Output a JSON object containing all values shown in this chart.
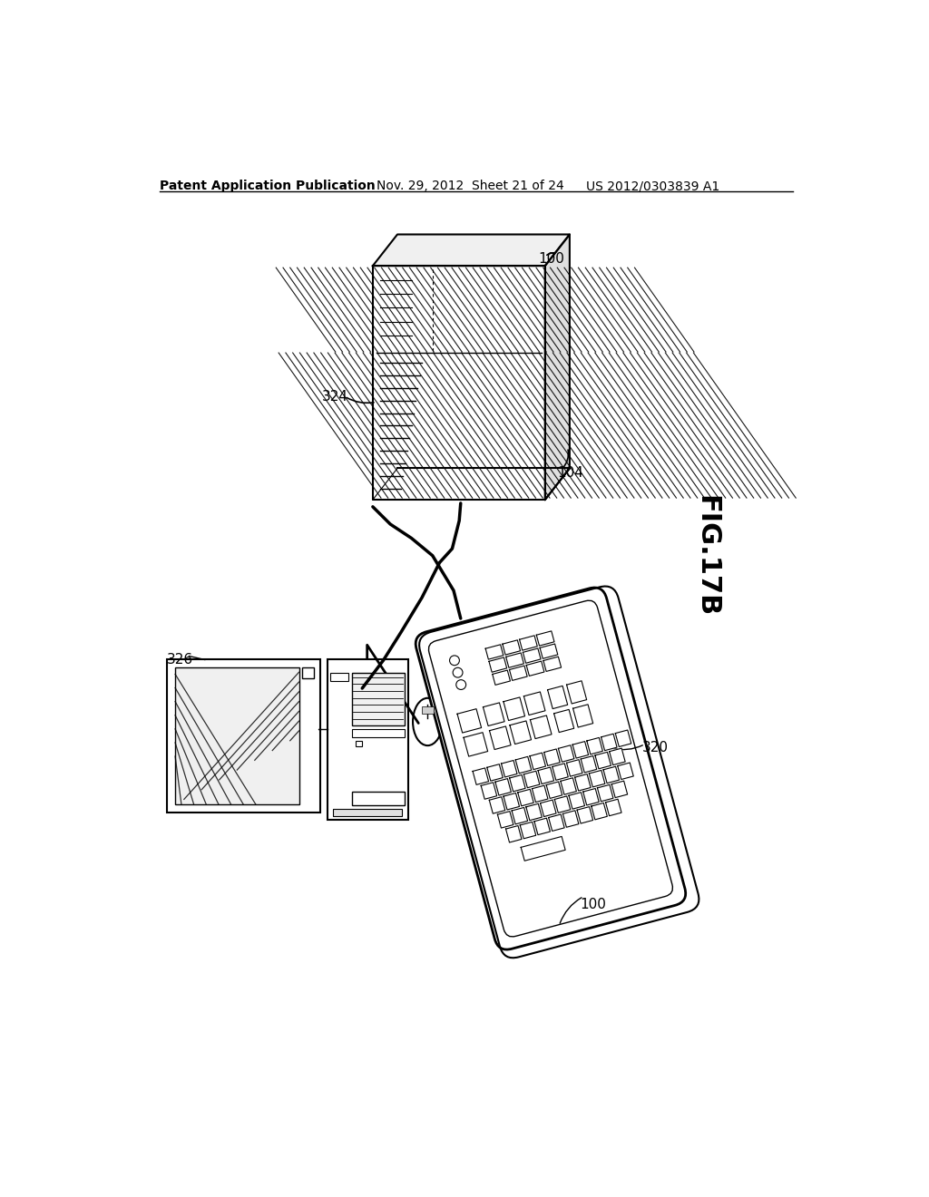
{
  "header_left": "Patent Application Publication",
  "header_mid": "Nov. 29, 2012  Sheet 21 of 24",
  "header_right": "US 2012/0303839 A1",
  "fig_label": "FIG.17B",
  "bg_color": "#ffffff",
  "line_color": "#000000",
  "label_100_top": "100",
  "label_324": "324",
  "label_104": "104",
  "label_326": "326",
  "label_320": "320",
  "label_100_bot": "100"
}
